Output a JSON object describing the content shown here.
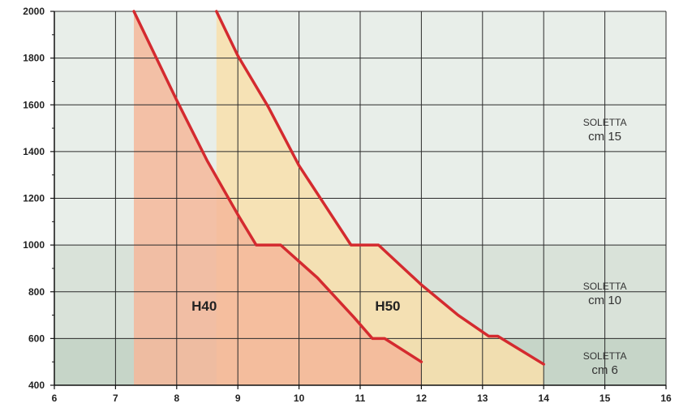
{
  "chart_data": {
    "type": "line",
    "title": "",
    "xlabel": "",
    "ylabel": "",
    "xlim": [
      6,
      16
    ],
    "ylim": [
      400,
      2000
    ],
    "x_ticks": [
      "6",
      "7",
      "8",
      "9",
      "10",
      "11",
      "12",
      "13",
      "14",
      "15",
      "16"
    ],
    "y_ticks": [
      "400",
      "600",
      "800",
      "1000",
      "1200",
      "1400",
      "1600",
      "1800",
      "2000"
    ],
    "x_tick_values": [
      6,
      7,
      8,
      9,
      10,
      11,
      12,
      13,
      14,
      15,
      16
    ],
    "y_tick_values": [
      400,
      600,
      800,
      1000,
      1200,
      1400,
      1600,
      1800,
      2000
    ],
    "grid": true,
    "bands": [
      {
        "from": 1000,
        "to": 2000,
        "label_line1": "SOLETTA",
        "label_line2": "cm 15",
        "color": "#e8eee9"
      },
      {
        "from": 600,
        "to": 1000,
        "label_line1": "SOLETTA",
        "label_line2": "cm 10",
        "color": "#d9e2d9"
      },
      {
        "from": 400,
        "to": 600,
        "label_line1": "SOLETTA",
        "label_line2": "cm 6",
        "color": "#c6d5c8"
      }
    ],
    "series": [
      {
        "name": "H40",
        "color": "#d42a2f",
        "fill": "#f4b79a",
        "fill_start_x": 7.3,
        "x": [
          7.3,
          8.0,
          8.5,
          9.0,
          9.3,
          9.7,
          10.3,
          10.9,
          11.2,
          11.4,
          12.0
        ],
        "y": [
          2000,
          1620,
          1360,
          1130,
          1000,
          1000,
          860,
          690,
          600,
          600,
          500
        ],
        "label_position": [
          8.45,
          740
        ]
      },
      {
        "name": "H50",
        "color": "#d42a2f",
        "fill": "#f8dfab",
        "fill_start_x": 8.65,
        "x": [
          8.65,
          9.0,
          9.5,
          10.0,
          10.5,
          10.85,
          11.3,
          12.0,
          12.6,
          13.1,
          13.25,
          14.0
        ],
        "y": [
          2000,
          1810,
          1590,
          1340,
          1140,
          1000,
          1000,
          830,
          700,
          610,
          610,
          490
        ],
        "label_position": [
          11.45,
          740
        ]
      }
    ]
  }
}
